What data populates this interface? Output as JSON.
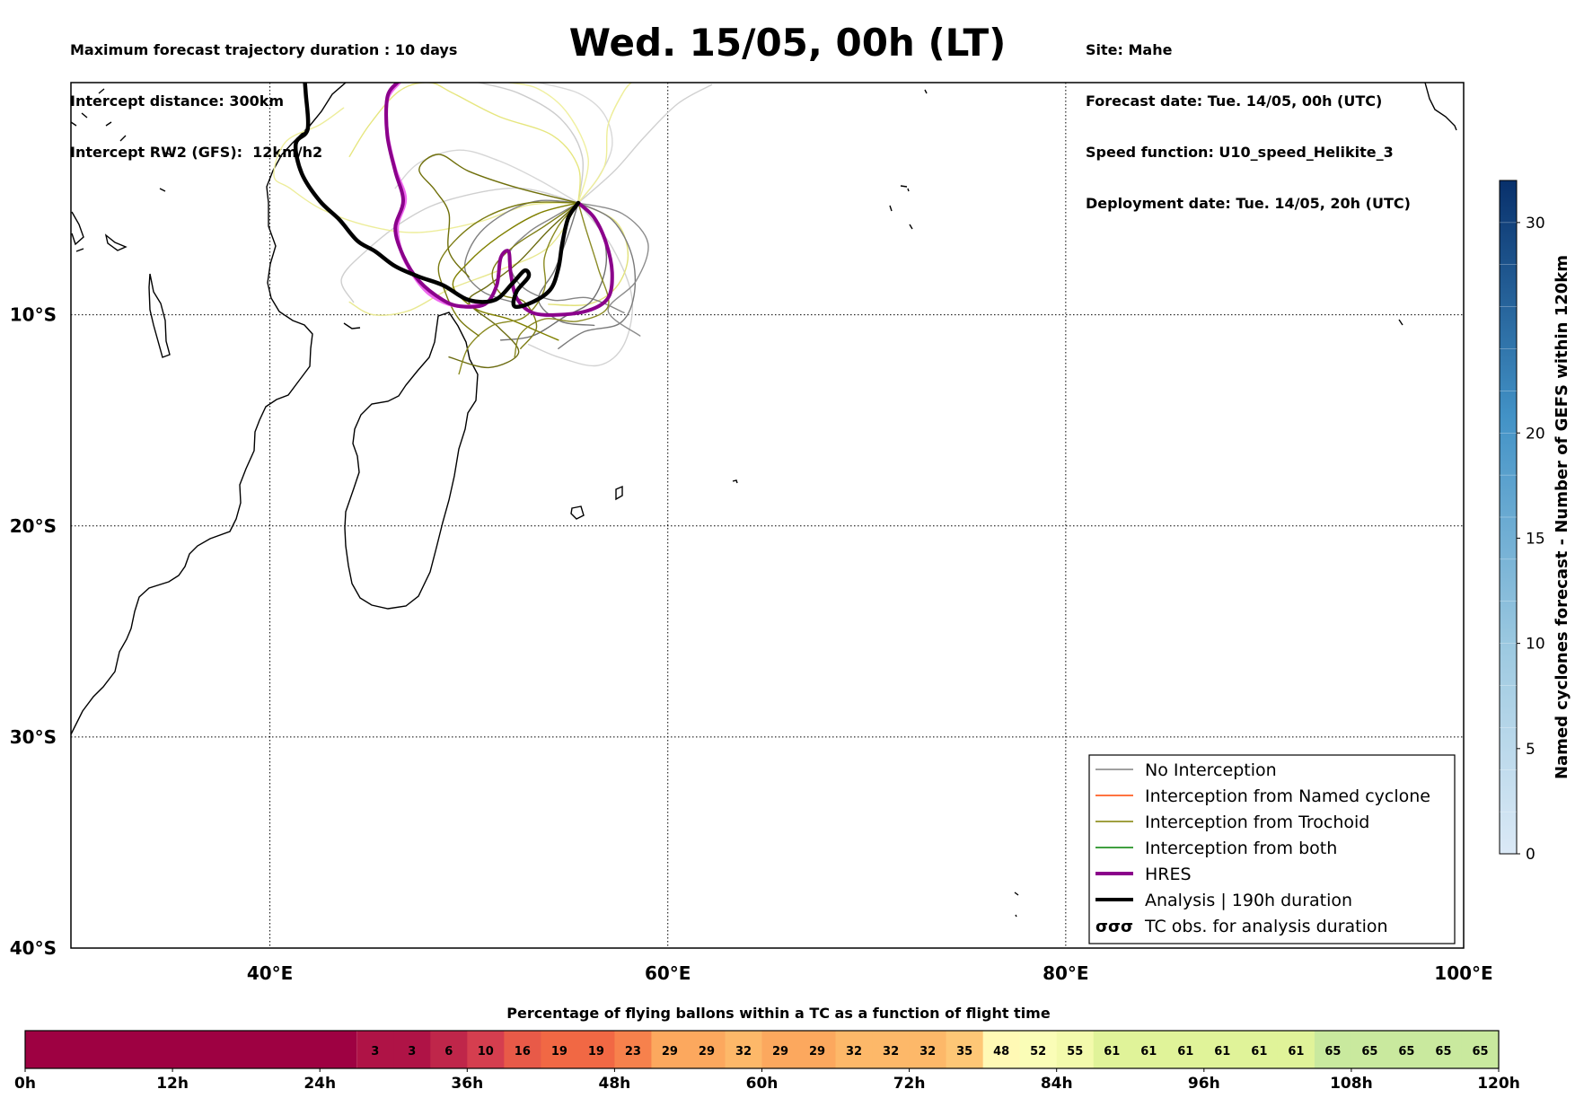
{
  "header_left": [
    "Maximum forecast trajectory duration : 10 days",
    "Intercept distance: 300km",
    "Intercept RW2 (GFS):  12km/h2"
  ],
  "header_right": [
    "Site: Mahe",
    "Forecast date: Tue. 14/05, 00h (UTC)",
    "Speed function: U10_speed_Helikite_3",
    "Deployment date: Tue. 14/05, 20h (UTC)"
  ],
  "title": "Wed. 15/05, 00h (LT)",
  "map": {
    "lon_range": [
      30,
      100
    ],
    "lat_range": [
      -40,
      1
    ],
    "lon_ticks": [
      {
        "v": 40,
        "label": "40°E"
      },
      {
        "v": 60,
        "label": "60°E"
      },
      {
        "v": 80,
        "label": "80°E"
      },
      {
        "v": 100,
        "label": "100°E"
      }
    ],
    "lat_ticks": [
      {
        "v": -10,
        "label": "10°S"
      },
      {
        "v": -20,
        "label": "20°S"
      },
      {
        "v": -30,
        "label": "30°S"
      },
      {
        "v": -40,
        "label": "40°S"
      }
    ],
    "grid": true
  },
  "legend": {
    "position": "lower-right",
    "items": [
      {
        "label": "No Interception",
        "color": "#808080",
        "style": "thin"
      },
      {
        "label": "Interception from Named cyclone",
        "color": "#ff4500",
        "style": "thin"
      },
      {
        "label": "Interception from Trochoid",
        "color": "#808000",
        "style": "thin"
      },
      {
        "label": "Interception from both",
        "color": "#008000",
        "style": "thin"
      },
      {
        "label": "HRES",
        "color": "#8b008b",
        "style": "thick"
      },
      {
        "label": "Analysis | 190h duration",
        "color": "#000000",
        "style": "thick"
      },
      {
        "label": "TC obs. for analysis duration",
        "color": "#000000",
        "style": "symbol",
        "symbol": "σσσ"
      }
    ]
  },
  "colorbar_right": {
    "label": "Named cyclones forecast - Number of GEFS within 120km",
    "ticks": [
      0,
      5,
      10,
      15,
      20,
      30
    ],
    "range": [
      0,
      32
    ],
    "color_low": "#dbe9f6",
    "color_high": "#08306b"
  },
  "colorbar_bottom": {
    "title": "Percentage of flying ballons within a TC as a function of flight time",
    "ticks": [
      "0h",
      "12h",
      "24h",
      "36h",
      "48h",
      "60h",
      "72h",
      "84h",
      "96h",
      "108h",
      "120h"
    ],
    "start_hours": 27,
    "step_hours": 3,
    "base_color": "#9e0142",
    "cells": [
      3,
      3,
      6,
      10,
      16,
      19,
      19,
      23,
      29,
      29,
      32,
      29,
      29,
      32,
      32,
      32,
      35,
      48,
      52,
      55,
      61,
      61,
      61,
      61,
      61,
      61,
      65,
      65,
      65,
      65,
      65
    ]
  },
  "trajectories": {
    "hres": {
      "color": "#8b008b",
      "points": [
        [
          55.5,
          -4.7
        ],
        [
          56.3,
          -5.4
        ],
        [
          56.9,
          -6.6
        ],
        [
          57.2,
          -8.0
        ],
        [
          57.0,
          -9.2
        ],
        [
          56.0,
          -9.8
        ],
        [
          54.5,
          -10.0
        ],
        [
          53.2,
          -9.9
        ],
        [
          52.4,
          -9.2
        ],
        [
          52.1,
          -8.0
        ],
        [
          52.0,
          -7.0
        ],
        [
          51.6,
          -7.3
        ],
        [
          51.4,
          -8.6
        ],
        [
          50.8,
          -9.5
        ],
        [
          49.6,
          -9.6
        ],
        [
          48.7,
          -9.3
        ],
        [
          47.5,
          -8.4
        ],
        [
          46.7,
          -7.2
        ],
        [
          46.3,
          -5.9
        ],
        [
          46.7,
          -4.6
        ],
        [
          46.3,
          -3.2
        ],
        [
          45.9,
          -1.5
        ],
        [
          45.9,
          0.3
        ],
        [
          46.4,
          1.0
        ]
      ]
    },
    "hres_light": {
      "color": "#ee6aee",
      "points": [
        [
          51.0,
          -9.4
        ],
        [
          50.0,
          -9.6
        ],
        [
          49.0,
          -9.5
        ],
        [
          48.0,
          -9.0
        ],
        [
          47.2,
          -8.1
        ],
        [
          46.6,
          -7.0
        ],
        [
          46.4,
          -5.8
        ],
        [
          46.8,
          -4.5
        ],
        [
          46.3,
          -3.1
        ],
        [
          45.9,
          -1.4
        ],
        [
          45.9,
          0.2
        ],
        [
          46.5,
          1.0
        ]
      ]
    },
    "analysis": {
      "color": "#000000",
      "points": [
        [
          55.5,
          -4.7
        ],
        [
          55.0,
          -5.4
        ],
        [
          54.7,
          -6.6
        ],
        [
          54.5,
          -7.8
        ],
        [
          54.1,
          -8.8
        ],
        [
          53.2,
          -9.4
        ],
        [
          52.3,
          -9.6
        ],
        [
          52.4,
          -8.9
        ],
        [
          53.0,
          -8.2
        ],
        [
          52.8,
          -7.9
        ],
        [
          52.2,
          -8.5
        ],
        [
          51.3,
          -9.3
        ],
        [
          50.0,
          -9.3
        ],
        [
          48.7,
          -8.6
        ],
        [
          47.5,
          -8.2
        ],
        [
          46.3,
          -7.7
        ],
        [
          45.3,
          -7.0
        ],
        [
          44.4,
          -6.5
        ],
        [
          43.5,
          -5.5
        ],
        [
          42.5,
          -4.6
        ],
        [
          41.6,
          -3.3
        ],
        [
          41.3,
          -1.9
        ],
        [
          41.9,
          -1.2
        ],
        [
          41.8,
          0.5
        ],
        [
          41.7,
          1.7
        ]
      ]
    },
    "trochoid": [
      {
        "color": "#6b6b10",
        "points": [
          [
            55.5,
            -4.7
          ],
          [
            54.0,
            -6.0
          ],
          [
            52.5,
            -7.5
          ],
          [
            51.0,
            -8.6
          ],
          [
            50.0,
            -9.4
          ],
          [
            51.5,
            -10.6
          ],
          [
            52.5,
            -11.8
          ],
          [
            51.0,
            -12.5
          ],
          [
            49.0,
            -12.0
          ]
        ]
      },
      {
        "color": "#808000",
        "points": [
          [
            55.5,
            -4.7
          ],
          [
            53.5,
            -5.2
          ],
          [
            51.5,
            -6.3
          ],
          [
            50.0,
            -7.5
          ],
          [
            49.2,
            -8.6
          ],
          [
            50.3,
            -9.7
          ],
          [
            52.0,
            -10.2
          ],
          [
            53.5,
            -10.8
          ],
          [
            54.5,
            -11.2
          ]
        ]
      },
      {
        "color": "#8a8a20",
        "points": [
          [
            55.5,
            -4.7
          ],
          [
            54.5,
            -5.8
          ],
          [
            53.8,
            -7.3
          ],
          [
            53.8,
            -8.8
          ],
          [
            52.8,
            -10.1
          ],
          [
            51.2,
            -10.5
          ],
          [
            50.0,
            -11.5
          ],
          [
            49.5,
            -12.8
          ]
        ]
      },
      {
        "color": "#7a7a10",
        "points": [
          [
            55.5,
            -4.7
          ],
          [
            53.0,
            -4.7
          ],
          [
            51.0,
            -5.3
          ],
          [
            49.5,
            -6.3
          ],
          [
            48.5,
            -7.6
          ],
          [
            48.8,
            -8.9
          ],
          [
            49.5,
            -10.2
          ],
          [
            50.5,
            -11.0
          ]
        ]
      },
      {
        "color": "#6f6f0a",
        "points": [
          [
            55.5,
            -4.7
          ],
          [
            52.5,
            -4.0
          ],
          [
            50.0,
            -3.2
          ],
          [
            48.5,
            -2.4
          ],
          [
            47.5,
            -3.1
          ],
          [
            48.3,
            -4.1
          ],
          [
            49.0,
            -5.2
          ],
          [
            49.0,
            -7.0
          ],
          [
            50.0,
            -8.2
          ]
        ]
      },
      {
        "color": "#8a8a25",
        "points": [
          [
            55.5,
            -4.7
          ],
          [
            55.9,
            -6.0
          ],
          [
            56.5,
            -7.8
          ],
          [
            57.0,
            -9.6
          ],
          [
            55.5,
            -10.3
          ],
          [
            53.8,
            -10.2
          ],
          [
            52.6,
            -10.9
          ],
          [
            52.3,
            -12.0
          ]
        ]
      },
      {
        "color": "#7d7d15",
        "points": [
          [
            55.5,
            -4.7
          ],
          [
            53.8,
            -5.8
          ],
          [
            52.2,
            -6.8
          ],
          [
            51.2,
            -7.9
          ],
          [
            51.6,
            -9.0
          ],
          [
            52.8,
            -9.4
          ],
          [
            53.4,
            -10.6
          ],
          [
            52.6,
            -11.6
          ]
        ]
      }
    ],
    "trochoid_light": [
      {
        "color": "#eded9a",
        "points": [
          [
            55.5,
            -4.7
          ],
          [
            53.0,
            -4.8
          ],
          [
            50.5,
            -5.6
          ],
          [
            47.5,
            -6.1
          ],
          [
            45.0,
            -5.8
          ],
          [
            42.6,
            -5.0
          ],
          [
            41.0,
            -4.0
          ],
          [
            40.2,
            -3.4
          ],
          [
            40.8,
            -1.8
          ],
          [
            42.5,
            -1.0
          ],
          [
            43.7,
            -0.2
          ]
        ]
      },
      {
        "color": "#e6e67e",
        "points": [
          [
            55.5,
            -4.7
          ],
          [
            55.5,
            -3.0
          ],
          [
            54.2,
            -1.5
          ],
          [
            51.5,
            -0.6
          ],
          [
            49.2,
            0.5
          ],
          [
            48.0,
            1.0
          ],
          [
            46.5,
            0.6
          ],
          [
            45.0,
            -1.0
          ],
          [
            44.0,
            -2.5
          ]
        ]
      },
      {
        "color": "#eeee99",
        "points": [
          [
            55.5,
            -4.7
          ],
          [
            56.8,
            -3.0
          ],
          [
            57.0,
            -1.0
          ],
          [
            57.8,
            0.6
          ],
          [
            58.3,
            1.1
          ]
        ]
      },
      {
        "color": "#e8e890",
        "points": [
          [
            55.5,
            -4.7
          ],
          [
            54.0,
            -6.8
          ],
          [
            51.5,
            -7.9
          ],
          [
            49.0,
            -8.8
          ],
          [
            47.0,
            -9.8
          ],
          [
            45.2,
            -10.0
          ],
          [
            44.0,
            -9.4
          ]
        ]
      },
      {
        "color": "#f0f0a0",
        "points": [
          [
            55.5,
            -4.7
          ],
          [
            56.0,
            -2.6
          ],
          [
            55.0,
            -0.5
          ],
          [
            53.5,
            0.7
          ],
          [
            52.0,
            1.0
          ]
        ]
      },
      {
        "color": "#e2e27a",
        "points": [
          [
            55.5,
            -4.7
          ],
          [
            57.4,
            -5.6
          ],
          [
            58.0,
            -7.2
          ],
          [
            57.4,
            -8.7
          ],
          [
            56.0,
            -9.5
          ],
          [
            54.0,
            -9.5
          ]
        ]
      }
    ],
    "nointercept": [
      {
        "color": "#7a7a7a",
        "points": [
          [
            55.5,
            -4.7
          ],
          [
            57.2,
            -5.5
          ],
          [
            58.2,
            -7.2
          ],
          [
            58.3,
            -9.1
          ],
          [
            57.6,
            -10.4
          ],
          [
            55.8,
            -10.8
          ],
          [
            54.5,
            -11.6
          ]
        ]
      },
      {
        "color": "#858585",
        "points": [
          [
            55.5,
            -4.7
          ],
          [
            54.2,
            -5.4
          ],
          [
            53.0,
            -6.1
          ],
          [
            52.0,
            -7.2
          ],
          [
            52.6,
            -8.6
          ],
          [
            54.2,
            -9.3
          ],
          [
            56.0,
            -9.2
          ],
          [
            57.8,
            -9.9
          ]
        ]
      },
      {
        "color": "#6e6e6e",
        "points": [
          [
            55.5,
            -4.7
          ],
          [
            56.6,
            -5.8
          ],
          [
            56.9,
            -7.6
          ],
          [
            56.2,
            -9.3
          ],
          [
            54.8,
            -10.1
          ],
          [
            53.2,
            -11.0
          ],
          [
            51.6,
            -11.2
          ]
        ]
      },
      {
        "color": "#808080",
        "points": [
          [
            55.5,
            -4.7
          ],
          [
            53.5,
            -4.6
          ],
          [
            51.8,
            -5.2
          ],
          [
            50.4,
            -6.3
          ],
          [
            49.8,
            -7.8
          ],
          [
            50.7,
            -8.9
          ],
          [
            52.2,
            -9.4
          ]
        ]
      },
      {
        "color": "#777777",
        "points": [
          [
            55.5,
            -4.7
          ],
          [
            55.0,
            -6.2
          ],
          [
            54.3,
            -7.9
          ],
          [
            53.5,
            -9.3
          ],
          [
            54.6,
            -10.3
          ],
          [
            56.3,
            -10.5
          ]
        ]
      },
      {
        "color": "#8c8c8c",
        "points": [
          [
            55.5,
            -4.7
          ],
          [
            57.7,
            -5.2
          ],
          [
            59.0,
            -6.6
          ],
          [
            58.4,
            -8.4
          ],
          [
            57.0,
            -9.8
          ],
          [
            58.6,
            -11.0
          ]
        ]
      }
    ],
    "nointercept_light": [
      {
        "color": "#d0d0d0",
        "points": [
          [
            55.5,
            -4.7
          ],
          [
            57.3,
            -3.2
          ],
          [
            58.8,
            -1.6
          ],
          [
            60.5,
            0.0
          ],
          [
            62.2,
            0.9
          ]
        ]
      },
      {
        "color": "#cccccc",
        "points": [
          [
            55.5,
            -4.7
          ],
          [
            55.7,
            -2.5
          ],
          [
            54.6,
            -0.7
          ],
          [
            52.5,
            0.5
          ],
          [
            50.5,
            1.0
          ]
        ]
      },
      {
        "color": "#d6d6d6",
        "points": [
          [
            55.5,
            -4.7
          ],
          [
            53.5,
            -3.6
          ],
          [
            51.5,
            -2.7
          ],
          [
            49.5,
            -2.2
          ],
          [
            47.5,
            -2.8
          ],
          [
            46.3,
            -4.0
          ]
        ]
      },
      {
        "color": "#cfcfcf",
        "points": [
          [
            55.5,
            -4.7
          ],
          [
            52.5,
            -4.0
          ],
          [
            49.2,
            -4.5
          ],
          [
            47.0,
            -5.4
          ],
          [
            44.8,
            -7.0
          ],
          [
            43.6,
            -8.3
          ],
          [
            44.2,
            -9.4
          ]
        ]
      },
      {
        "color": "#d2d2d2",
        "points": [
          [
            55.5,
            -4.7
          ],
          [
            57.2,
            -6.8
          ],
          [
            58.2,
            -9.2
          ],
          [
            57.8,
            -11.4
          ],
          [
            56.5,
            -12.4
          ],
          [
            54.5,
            -12.0
          ],
          [
            53.0,
            -11.4
          ]
        ]
      },
      {
        "color": "#d8d8d8",
        "points": [
          [
            55.5,
            -4.7
          ],
          [
            56.5,
            -3.5
          ],
          [
            57.2,
            -2.0
          ],
          [
            56.8,
            -0.5
          ],
          [
            55.5,
            0.5
          ],
          [
            53.5,
            1.0
          ]
        ]
      }
    ]
  }
}
